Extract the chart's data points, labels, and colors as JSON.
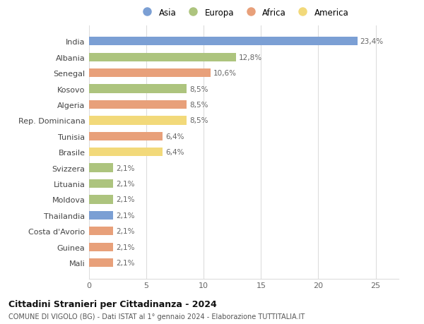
{
  "countries": [
    "India",
    "Albania",
    "Senegal",
    "Kosovo",
    "Algeria",
    "Rep. Dominicana",
    "Tunisia",
    "Brasile",
    "Svizzera",
    "Lituania",
    "Moldova",
    "Thailandia",
    "Costa d'Avorio",
    "Guinea",
    "Mali"
  ],
  "values": [
    23.4,
    12.8,
    10.6,
    8.5,
    8.5,
    8.5,
    6.4,
    6.4,
    2.1,
    2.1,
    2.1,
    2.1,
    2.1,
    2.1,
    2.1
  ],
  "labels": [
    "23,4%",
    "12,8%",
    "10,6%",
    "8,5%",
    "8,5%",
    "8,5%",
    "6,4%",
    "6,4%",
    "2,1%",
    "2,1%",
    "2,1%",
    "2,1%",
    "2,1%",
    "2,1%",
    "2,1%"
  ],
  "colors": [
    "#7b9fd4",
    "#adc47e",
    "#e8a07a",
    "#adc47e",
    "#e8a07a",
    "#f2d97a",
    "#e8a07a",
    "#f2d97a",
    "#adc47e",
    "#adc47e",
    "#adc47e",
    "#7b9fd4",
    "#e8a07a",
    "#e8a07a",
    "#e8a07a"
  ],
  "legend_labels": [
    "Asia",
    "Europa",
    "Africa",
    "America"
  ],
  "legend_colors": [
    "#7b9fd4",
    "#adc47e",
    "#e8a07a",
    "#f2d97a"
  ],
  "title": "Cittadini Stranieri per Cittadinanza - 2024",
  "subtitle": "COMUNE DI VIGOLO (BG) - Dati ISTAT al 1° gennaio 2024 - Elaborazione TUTTITALIA.IT",
  "xlim": [
    0,
    27
  ],
  "xticks": [
    0,
    5,
    10,
    15,
    20,
    25
  ],
  "bg_color": "#ffffff",
  "grid_color": "#dddddd",
  "label_color": "#666666",
  "ytick_color": "#444444"
}
